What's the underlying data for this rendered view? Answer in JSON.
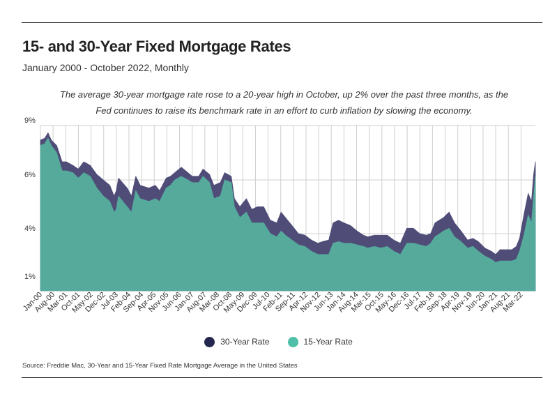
{
  "header": {
    "title": "15- and 30-Year Fixed Mortgage Rates",
    "subtitle": "January 2000 - October 2022, Monthly",
    "note": "The average 30-year mortgage rate rose to a 20-year high in October, up 2% over the past three months, as the Fed continues to raise its benchmark rate in an effort to curb inflation by slowing the economy."
  },
  "footer": {
    "source": "Source:  Freddie Mac, 30-Year  and 15-Year Fixed Rate Mortgage Average in the United States"
  },
  "colors": {
    "thirty_year": "#4f4d78",
    "thirty_year_legend": "#24284f",
    "fifteen_year": "#55aa9c",
    "fifteen_year_legend": "#4fbfa8",
    "grid": "#cfcfcf"
  },
  "chart_data": {
    "type": "area",
    "title": "15- and 30-Year Fixed Mortgage Rates",
    "xlabel": "",
    "ylabel": "",
    "ylim": [
      0.5,
      9
    ],
    "yticks": [
      {
        "value": 1,
        "label": "1%"
      },
      {
        "value": 4,
        "label": "4%"
      },
      {
        "value": 6,
        "label": "6%"
      },
      {
        "value": 9,
        "label": "9%"
      }
    ],
    "x_start": "2000-01",
    "x_end": "2022-10",
    "x_ticks": [
      {
        "t": 2000.0,
        "label": "Jan-00"
      },
      {
        "t": 2000.583,
        "label": "Aug-00"
      },
      {
        "t": 2001.167,
        "label": "Mar-01"
      },
      {
        "t": 2001.75,
        "label": "Oct-01"
      },
      {
        "t": 2002.333,
        "label": "May-02"
      },
      {
        "t": 2002.917,
        "label": "Dec-02"
      },
      {
        "t": 2003.5,
        "label": "Jul-03"
      },
      {
        "t": 2004.083,
        "label": "Feb-04"
      },
      {
        "t": 2004.667,
        "label": "Sep-04"
      },
      {
        "t": 2005.25,
        "label": "Apr-05"
      },
      {
        "t": 2005.833,
        "label": "Nov-05"
      },
      {
        "t": 2006.417,
        "label": "Jun-06"
      },
      {
        "t": 2007.0,
        "label": "Jan-07"
      },
      {
        "t": 2007.583,
        "label": "Aug-07"
      },
      {
        "t": 2008.167,
        "label": "Mar-08"
      },
      {
        "t": 2008.75,
        "label": "Oct-08"
      },
      {
        "t": 2009.333,
        "label": "May-09"
      },
      {
        "t": 2009.917,
        "label": "Dec-09"
      },
      {
        "t": 2010.5,
        "label": "Jul-10"
      },
      {
        "t": 2011.083,
        "label": "Feb-11"
      },
      {
        "t": 2011.667,
        "label": "Sep-11"
      },
      {
        "t": 2012.25,
        "label": "Apr-12"
      },
      {
        "t": 2012.833,
        "label": "Nov-12"
      },
      {
        "t": 2013.417,
        "label": "Jun-13"
      },
      {
        "t": 2014.0,
        "label": "Jan-14"
      },
      {
        "t": 2014.583,
        "label": "Aug-14"
      },
      {
        "t": 2015.167,
        "label": "Mar-15"
      },
      {
        "t": 2015.75,
        "label": "Oct-15"
      },
      {
        "t": 2016.333,
        "label": "May-16"
      },
      {
        "t": 2016.917,
        "label": "Dec-16"
      },
      {
        "t": 2017.5,
        "label": "Jul-17"
      },
      {
        "t": 2018.083,
        "label": "Feb-18"
      },
      {
        "t": 2018.667,
        "label": "Sep-18"
      },
      {
        "t": 2019.25,
        "label": "Apr-19"
      },
      {
        "t": 2019.833,
        "label": "Nov-19"
      },
      {
        "t": 2020.417,
        "label": "Jun-20"
      },
      {
        "t": 2021.0,
        "label": "Jan-21"
      },
      {
        "t": 2021.583,
        "label": "Aug-21"
      },
      {
        "t": 2022.167,
        "label": "Mar-22"
      }
    ],
    "series": [
      {
        "name": "30-Year Rate",
        "points": [
          [
            2000.0,
            8.2
          ],
          [
            2000.2,
            8.3
          ],
          [
            2000.35,
            8.6
          ],
          [
            2000.5,
            8.2
          ],
          [
            2000.75,
            7.9
          ],
          [
            2001.0,
            7.0
          ],
          [
            2001.2,
            7.0
          ],
          [
            2001.5,
            6.8
          ],
          [
            2001.75,
            6.6
          ],
          [
            2002.0,
            7.0
          ],
          [
            2002.3,
            6.8
          ],
          [
            2002.6,
            6.3
          ],
          [
            2002.9,
            6.0
          ],
          [
            2003.2,
            5.8
          ],
          [
            2003.4,
            5.4
          ],
          [
            2003.5,
            5.6
          ],
          [
            2003.6,
            6.1
          ],
          [
            2004.0,
            5.7
          ],
          [
            2004.2,
            5.4
          ],
          [
            2004.4,
            6.2
          ],
          [
            2004.6,
            5.8
          ],
          [
            2005.0,
            5.7
          ],
          [
            2005.3,
            5.8
          ],
          [
            2005.5,
            5.6
          ],
          [
            2005.8,
            6.1
          ],
          [
            2006.0,
            6.2
          ],
          [
            2006.2,
            6.4
          ],
          [
            2006.5,
            6.7
          ],
          [
            2006.8,
            6.4
          ],
          [
            2007.0,
            6.2
          ],
          [
            2007.3,
            6.2
          ],
          [
            2007.5,
            6.6
          ],
          [
            2007.8,
            6.3
          ],
          [
            2008.0,
            5.8
          ],
          [
            2008.3,
            5.9
          ],
          [
            2008.5,
            6.4
          ],
          [
            2008.8,
            6.2
          ],
          [
            2008.95,
            5.3
          ],
          [
            2009.2,
            5.0
          ],
          [
            2009.5,
            5.3
          ],
          [
            2009.75,
            4.9
          ],
          [
            2010.0,
            5.0
          ],
          [
            2010.3,
            5.0
          ],
          [
            2010.6,
            4.5
          ],
          [
            2010.9,
            4.4
          ],
          [
            2011.1,
            4.8
          ],
          [
            2011.3,
            4.6
          ],
          [
            2011.6,
            4.3
          ],
          [
            2011.9,
            4.0
          ],
          [
            2012.2,
            3.9
          ],
          [
            2012.5,
            3.6
          ],
          [
            2012.8,
            3.4
          ],
          [
            2013.0,
            3.5
          ],
          [
            2013.3,
            3.6
          ],
          [
            2013.5,
            4.4
          ],
          [
            2013.75,
            4.5
          ],
          [
            2014.0,
            4.4
          ],
          [
            2014.3,
            4.3
          ],
          [
            2014.6,
            4.1
          ],
          [
            2014.9,
            3.9
          ],
          [
            2015.1,
            3.8
          ],
          [
            2015.4,
            3.9
          ],
          [
            2015.7,
            3.9
          ],
          [
            2016.0,
            3.9
          ],
          [
            2016.3,
            3.6
          ],
          [
            2016.6,
            3.4
          ],
          [
            2016.9,
            4.2
          ],
          [
            2017.2,
            4.2
          ],
          [
            2017.5,
            4.0
          ],
          [
            2017.8,
            3.9
          ],
          [
            2018.0,
            4.0
          ],
          [
            2018.2,
            4.4
          ],
          [
            2018.6,
            4.6
          ],
          [
            2018.85,
            4.8
          ],
          [
            2019.1,
            4.4
          ],
          [
            2019.4,
            4.1
          ],
          [
            2019.7,
            3.6
          ],
          [
            2019.95,
            3.7
          ],
          [
            2020.2,
            3.5
          ],
          [
            2020.5,
            3.1
          ],
          [
            2020.8,
            2.9
          ],
          [
            2021.0,
            2.7
          ],
          [
            2021.2,
            3.0
          ],
          [
            2021.5,
            3.0
          ],
          [
            2021.75,
            3.0
          ],
          [
            2021.95,
            3.2
          ],
          [
            2022.1,
            3.7
          ],
          [
            2022.3,
            4.7
          ],
          [
            2022.5,
            5.5
          ],
          [
            2022.65,
            5.2
          ],
          [
            2022.75,
            6.3
          ],
          [
            2022.83,
            7.0
          ]
        ]
      },
      {
        "name": "15-Year Rate",
        "points": [
          [
            2000.0,
            7.9
          ],
          [
            2000.2,
            8.0
          ],
          [
            2000.35,
            8.3
          ],
          [
            2000.5,
            7.9
          ],
          [
            2000.75,
            7.5
          ],
          [
            2001.0,
            6.5
          ],
          [
            2001.2,
            6.5
          ],
          [
            2001.5,
            6.4
          ],
          [
            2001.75,
            6.1
          ],
          [
            2002.0,
            6.4
          ],
          [
            2002.3,
            6.2
          ],
          [
            2002.6,
            5.7
          ],
          [
            2002.9,
            5.4
          ],
          [
            2003.2,
            5.2
          ],
          [
            2003.4,
            4.8
          ],
          [
            2003.5,
            4.9
          ],
          [
            2003.6,
            5.4
          ],
          [
            2004.0,
            5.0
          ],
          [
            2004.2,
            4.8
          ],
          [
            2004.4,
            5.6
          ],
          [
            2004.6,
            5.3
          ],
          [
            2005.0,
            5.2
          ],
          [
            2005.3,
            5.3
          ],
          [
            2005.5,
            5.2
          ],
          [
            2005.8,
            5.7
          ],
          [
            2006.0,
            5.8
          ],
          [
            2006.2,
            6.0
          ],
          [
            2006.5,
            6.2
          ],
          [
            2006.8,
            6.0
          ],
          [
            2007.0,
            5.9
          ],
          [
            2007.3,
            5.9
          ],
          [
            2007.5,
            6.2
          ],
          [
            2007.8,
            5.9
          ],
          [
            2008.0,
            5.3
          ],
          [
            2008.3,
            5.4
          ],
          [
            2008.5,
            6.0
          ],
          [
            2008.8,
            5.9
          ],
          [
            2008.95,
            5.0
          ],
          [
            2009.2,
            4.6
          ],
          [
            2009.5,
            4.8
          ],
          [
            2009.75,
            4.4
          ],
          [
            2010.0,
            4.4
          ],
          [
            2010.3,
            4.4
          ],
          [
            2010.6,
            4.0
          ],
          [
            2010.9,
            3.8
          ],
          [
            2011.1,
            4.1
          ],
          [
            2011.3,
            3.9
          ],
          [
            2011.6,
            3.6
          ],
          [
            2011.9,
            3.3
          ],
          [
            2012.2,
            3.2
          ],
          [
            2012.5,
            2.9
          ],
          [
            2012.8,
            2.7
          ],
          [
            2013.0,
            2.7
          ],
          [
            2013.3,
            2.7
          ],
          [
            2013.5,
            3.4
          ],
          [
            2013.75,
            3.5
          ],
          [
            2014.0,
            3.4
          ],
          [
            2014.3,
            3.4
          ],
          [
            2014.6,
            3.3
          ],
          [
            2014.9,
            3.2
          ],
          [
            2015.1,
            3.1
          ],
          [
            2015.4,
            3.2
          ],
          [
            2015.7,
            3.1
          ],
          [
            2016.0,
            3.2
          ],
          [
            2016.3,
            2.9
          ],
          [
            2016.6,
            2.7
          ],
          [
            2016.9,
            3.4
          ],
          [
            2017.2,
            3.4
          ],
          [
            2017.5,
            3.3
          ],
          [
            2017.8,
            3.2
          ],
          [
            2018.0,
            3.4
          ],
          [
            2018.2,
            3.8
          ],
          [
            2018.6,
            4.1
          ],
          [
            2018.85,
            4.2
          ],
          [
            2019.1,
            3.8
          ],
          [
            2019.4,
            3.5
          ],
          [
            2019.7,
            3.1
          ],
          [
            2019.95,
            3.2
          ],
          [
            2020.2,
            2.9
          ],
          [
            2020.5,
            2.6
          ],
          [
            2020.8,
            2.4
          ],
          [
            2021.0,
            2.2
          ],
          [
            2021.2,
            2.3
          ],
          [
            2021.5,
            2.3
          ],
          [
            2021.75,
            2.3
          ],
          [
            2021.95,
            2.4
          ],
          [
            2022.1,
            2.9
          ],
          [
            2022.3,
            3.9
          ],
          [
            2022.5,
            4.7
          ],
          [
            2022.65,
            4.4
          ],
          [
            2022.75,
            5.4
          ],
          [
            2022.83,
            6.2
          ]
        ]
      }
    ]
  },
  "legend": [
    {
      "label": "30-Year Rate",
      "color": "#24284f"
    },
    {
      "label": "15-Year Rate",
      "color": "#4fbfa8"
    }
  ]
}
